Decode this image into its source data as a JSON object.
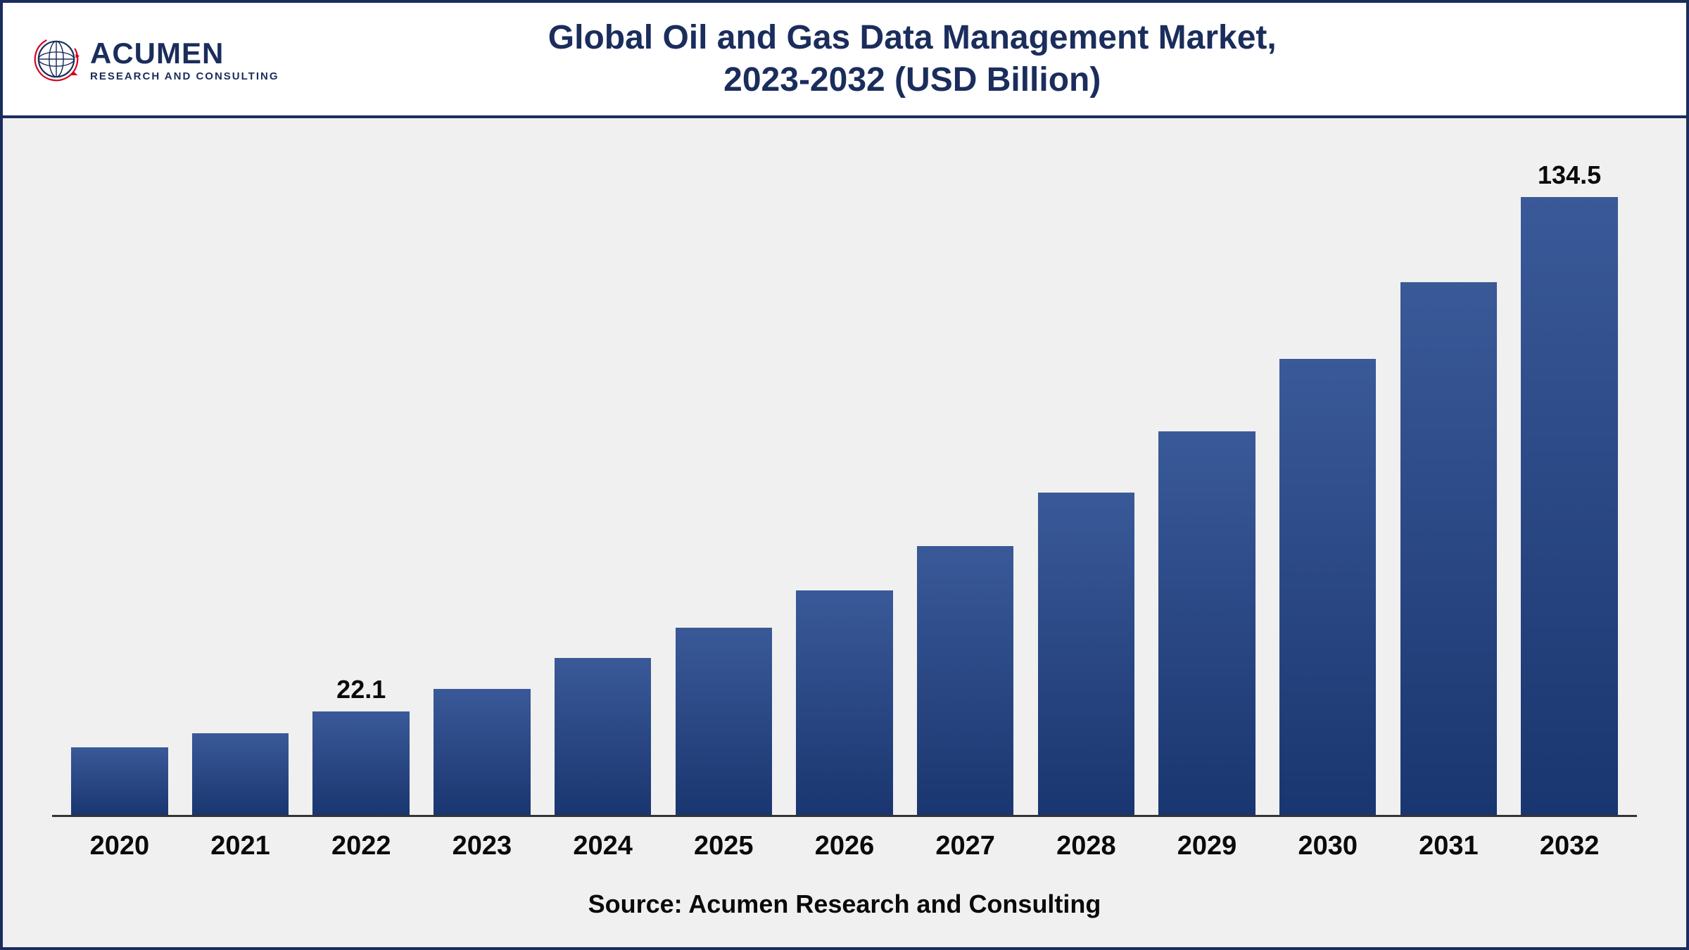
{
  "logo": {
    "name": "ACUMEN",
    "tagline": "RESEARCH AND CONSULTING"
  },
  "title": {
    "line1": "Global Oil and Gas Data Management Market,",
    "line2": "2023-2032 (USD Billion)"
  },
  "chart": {
    "type": "bar",
    "years": [
      "2020",
      "2021",
      "2022",
      "2023",
      "2024",
      "2025",
      "2026",
      "2027",
      "2028",
      "2029",
      "2030",
      "2031",
      "2032"
    ],
    "values": [
      14.5,
      17.5,
      22.1,
      27.0,
      33.5,
      40.0,
      48.0,
      57.5,
      69.0,
      82.0,
      97.5,
      114.0,
      134.5
    ],
    "value_labels": {
      "2022": "22.1",
      "2032": "134.5"
    },
    "ylim": [
      0,
      140
    ],
    "bar_color_top": "#3a5998",
    "bar_color_bottom": "#1a3670",
    "background_color": "#f0f0f0",
    "axis_color": "#333333",
    "title_fontsize": 48,
    "label_fontsize": 38,
    "value_label_fontsize": 36,
    "bar_width_pct": 88
  },
  "source": "Source: Acumen Research and Consulting",
  "colors": {
    "brand_navy": "#1a2d5c",
    "brand_red": "#d0021b",
    "text_black": "#0a0a0a",
    "chart_bg": "#f0f0f0",
    "page_bg": "#ffffff"
  }
}
